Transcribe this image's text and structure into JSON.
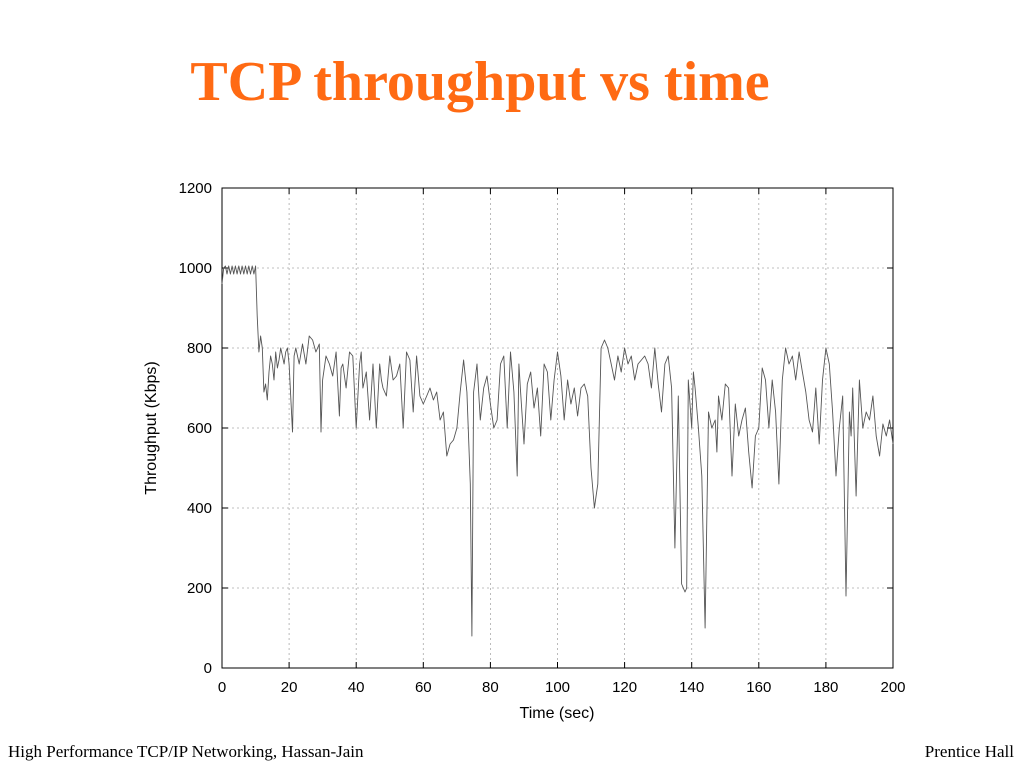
{
  "slide": {
    "title": "TCP throughput vs time",
    "footer_left": "High Performance TCP/IP Networking, Hassan-Jain",
    "footer_right": "Prentice Hall",
    "title_color": "#ff6a13"
  },
  "chart_data": {
    "type": "line",
    "xlabel": "Time (sec)",
    "ylabel": "Throughput (Kbps)",
    "xlim": [
      0,
      200
    ],
    "ylim": [
      0,
      1200
    ],
    "xticks": [
      0,
      20,
      40,
      60,
      80,
      100,
      120,
      140,
      160,
      180,
      200
    ],
    "yticks": [
      0,
      200,
      400,
      600,
      800,
      1000,
      1200
    ],
    "grid": true,
    "line_color": "#555555",
    "series": [
      {
        "x": [
          0,
          0.5,
          1,
          1.5,
          2,
          2.5,
          3,
          3.5,
          4,
          4.5,
          5,
          5.5,
          6,
          6.5,
          7,
          7.5,
          8,
          8.5,
          9,
          9.5,
          10,
          10.5,
          11,
          11.5,
          12,
          12.5,
          13,
          13.5,
          14,
          14.5,
          15,
          15.5,
          16,
          16.5,
          17,
          17.5,
          18,
          18.5,
          19,
          19.5,
          20,
          21,
          21.5,
          22,
          23,
          24,
          25,
          26,
          27,
          28,
          29,
          29.5,
          30,
          31,
          32,
          33,
          34,
          35,
          35.5,
          36,
          37,
          38,
          39,
          40,
          41,
          41.5,
          42,
          43,
          44,
          45,
          46,
          47,
          47.5,
          48,
          49,
          50,
          51,
          52,
          53,
          54,
          55,
          56,
          57,
          58,
          59,
          60,
          61,
          62,
          63,
          64,
          65,
          66,
          67,
          68,
          69,
          70,
          71,
          72,
          73,
          74,
          74.5,
          75,
          76,
          77,
          78,
          79,
          80,
          81,
          82,
          83,
          84,
          85,
          86,
          87,
          88,
          88.5,
          89,
          90,
          91,
          92,
          93,
          94,
          95,
          96,
          97,
          98,
          99,
          100,
          101,
          102,
          103,
          104,
          105,
          106,
          107,
          108,
          109,
          110,
          111,
          112,
          113,
          114,
          115,
          116,
          117,
          118,
          119,
          120,
          121,
          122,
          123,
          124,
          125,
          126,
          127,
          128,
          129,
          130,
          131,
          132,
          133,
          134,
          135,
          136,
          137,
          138,
          138.5,
          139,
          140,
          140.5,
          141,
          142,
          143,
          144,
          145,
          146,
          147,
          147.5,
          148,
          149,
          150,
          151,
          152,
          153,
          154,
          155,
          156,
          157,
          158,
          159,
          160,
          161,
          162,
          163,
          164,
          165,
          166,
          167,
          168,
          169,
          170,
          171,
          172,
          173,
          174,
          175,
          176,
          177,
          178,
          179,
          180,
          181,
          182,
          183,
          184,
          185,
          186,
          187,
          187.5,
          188,
          189,
          190,
          191,
          192,
          193,
          194,
          195,
          196,
          197,
          198,
          199,
          200
        ],
        "y": [
          960,
          1000,
          1005,
          985,
          1005,
          985,
          1005,
          985,
          1005,
          985,
          1005,
          985,
          1005,
          985,
          1005,
          985,
          1005,
          985,
          1005,
          985,
          1005,
          880,
          790,
          830,
          800,
          690,
          710,
          670,
          740,
          780,
          760,
          720,
          790,
          750,
          770,
          800,
          780,
          760,
          790,
          800,
          760,
          590,
          780,
          800,
          760,
          810,
          760,
          830,
          820,
          790,
          810,
          590,
          720,
          780,
          760,
          730,
          790,
          630,
          750,
          760,
          700,
          790,
          780,
          600,
          760,
          790,
          700,
          740,
          620,
          760,
          600,
          760,
          720,
          700,
          680,
          780,
          720,
          730,
          760,
          600,
          790,
          770,
          640,
          780,
          680,
          660,
          680,
          700,
          670,
          690,
          620,
          640,
          530,
          560,
          570,
          600,
          690,
          770,
          690,
          460,
          80,
          690,
          760,
          620,
          700,
          730,
          660,
          600,
          620,
          760,
          780,
          600,
          790,
          690,
          480,
          760,
          690,
          560,
          710,
          740,
          650,
          700,
          580,
          760,
          740,
          620,
          720,
          790,
          730,
          620,
          720,
          660,
          700,
          630,
          700,
          710,
          680,
          500,
          400,
          460,
          800,
          820,
          800,
          760,
          720,
          780,
          740,
          800,
          760,
          780,
          720,
          760,
          770,
          780,
          760,
          700,
          800,
          710,
          640,
          760,
          780,
          700,
          300,
          680,
          210,
          190,
          200,
          720,
          600,
          740,
          700,
          600,
          480,
          100,
          640,
          600,
          620,
          540,
          680,
          620,
          710,
          700,
          480,
          660,
          580,
          620,
          650,
          540,
          450,
          580,
          600,
          750,
          720,
          600,
          720,
          640,
          460,
          720,
          800,
          760,
          780,
          720,
          790,
          740,
          690,
          620,
          590,
          700,
          560,
          720,
          800,
          760,
          640,
          480,
          600,
          680,
          180,
          640,
          580,
          700,
          430,
          720,
          600,
          640,
          620,
          680,
          580,
          530,
          610,
          580,
          620,
          560
        ]
      }
    ]
  }
}
